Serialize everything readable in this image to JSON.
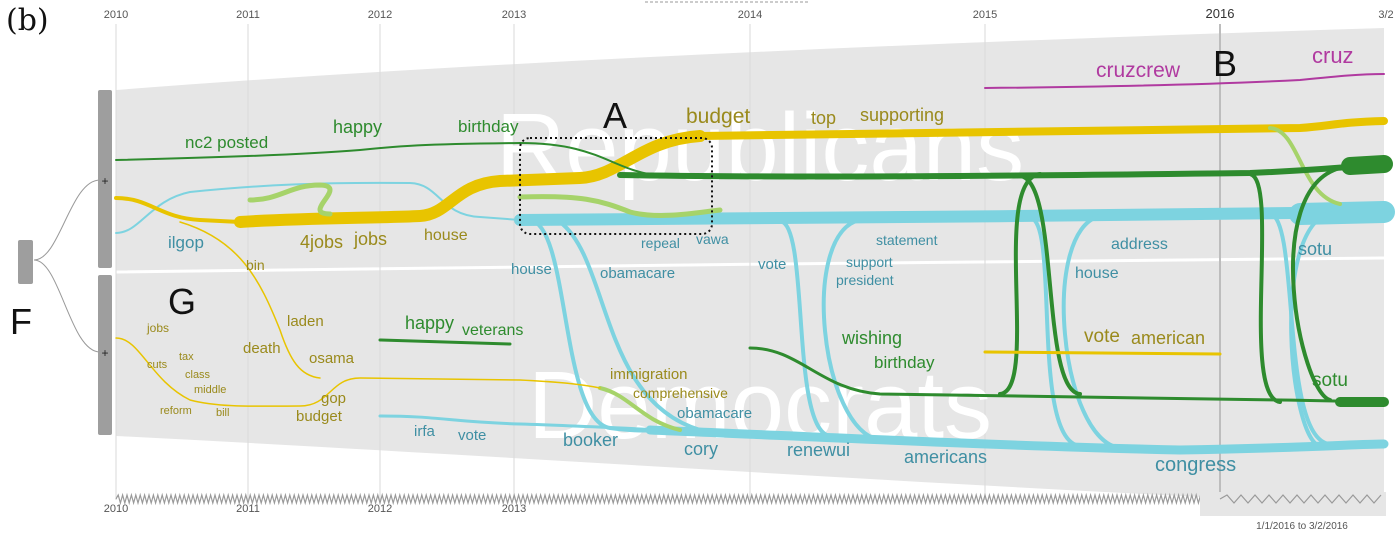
{
  "panel_label": "(b)",
  "years": [
    "2010",
    "2011",
    "2012",
    "2013",
    "2014",
    "2015",
    "2016",
    "3/2"
  ],
  "watermarks": {
    "top": "Republicans",
    "bottom": "Democrats"
  },
  "markers": {
    "A": "A",
    "B": "B",
    "F": "F",
    "G": "G"
  },
  "toggles": {
    "top": "+",
    "bottom": "+"
  },
  "range_caption": "1/1/2016 to 3/2/2016",
  "labels": {
    "nc2posted": "nc2 posted",
    "happy1": "happy",
    "birthday1": "birthday",
    "budget1": "budget",
    "top": "top",
    "supporting": "supporting",
    "cruzcrew": "cruzcrew",
    "cruz": "cruz",
    "ilgop": "ilgop",
    "jobs4": "4jobs",
    "jobs1": "jobs",
    "house1": "house",
    "repeal": "repeal",
    "vawa": "vawa",
    "statement": "statement",
    "address": "address",
    "sotu1": "sotu",
    "house2": "house",
    "obamacare1": "obamacare",
    "vote1": "vote",
    "support": "support",
    "president": "president",
    "house3": "house",
    "bin": "bin",
    "laden": "laden",
    "death": "death",
    "osama": "osama",
    "jobs2": "jobs",
    "tax": "tax",
    "cuts": "cuts",
    "class": "class",
    "middle": "middle",
    "reform": "reform",
    "bill": "bill",
    "gop": "gop",
    "budget2": "budget",
    "happy2": "happy",
    "veterans": "veterans",
    "wishing": "wishing",
    "birthday2": "birthday",
    "vote2": "vote",
    "american": "american",
    "sotu2": "sotu",
    "immigration": "immigration",
    "comprehensive": "comprehensive",
    "obamacare2": "obamacare",
    "irfa": "irfa",
    "vote3": "vote",
    "booker": "booker",
    "cory": "cory",
    "renewui": "renewui",
    "americans": "americans",
    "congress": "congress"
  },
  "colors": {
    "background_band": "#e6e6e6",
    "gold": "#e8c400",
    "gold_text": "#9a8a1c",
    "green": "#2e8b2e",
    "light_green": "#a6d36a",
    "cyan": "#7dd3e0",
    "cyan_text": "#3f8fa3",
    "magenta": "#b03aa0",
    "slider_bar": "#9e9e9e"
  }
}
